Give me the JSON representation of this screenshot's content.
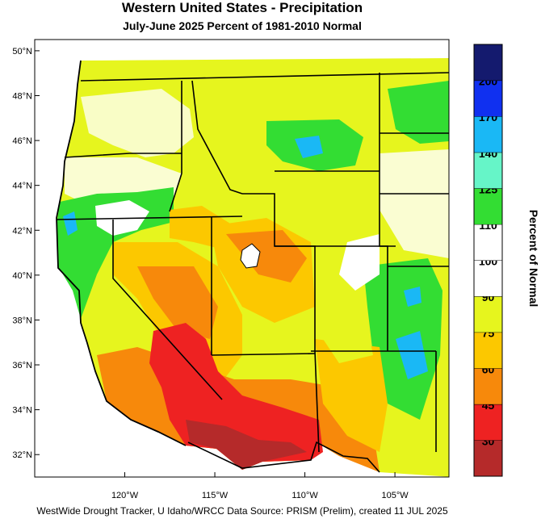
{
  "title": "Western United States - Precipitation",
  "subtitle": "July-June 2025  Percent of 1981-2010 Normal",
  "credit": "WestWide Drought Tracker, U Idaho/WRCC Data Source: PRISM (Prelim), created 11 JUL 2025",
  "map": {
    "lon_range": [
      -125,
      -102
    ],
    "lat_range": [
      31,
      50.5
    ],
    "lat_ticks": [
      {
        "value": 50,
        "label": "50°N"
      },
      {
        "value": 48,
        "label": "48°N"
      },
      {
        "value": 46,
        "label": "46°N"
      },
      {
        "value": 44,
        "label": "44°N"
      },
      {
        "value": 42,
        "label": "42°N"
      },
      {
        "value": 40,
        "label": "40°N"
      },
      {
        "value": 38,
        "label": "38°N"
      },
      {
        "value": 36,
        "label": "36°N"
      },
      {
        "value": 34,
        "label": "34°N"
      },
      {
        "value": 32,
        "label": "32°N"
      }
    ],
    "lon_ticks": [
      {
        "value": -120,
        "label": "120°W"
      },
      {
        "value": -115,
        "label": "115°W"
      },
      {
        "value": -110,
        "label": "110°W"
      },
      {
        "value": -105,
        "label": "105°W"
      }
    ],
    "water_color": "#ffffff",
    "land_outside_color": "#ffffff"
  },
  "legend": {
    "title": "Percent of Normal",
    "bins": [
      {
        "color": "#b52a2a",
        "label": "30"
      },
      {
        "color": "#ee2222",
        "label": "45"
      },
      {
        "color": "#f7890b",
        "label": "60"
      },
      {
        "color": "#fcc800",
        "label": "75"
      },
      {
        "color": "#e6f51e",
        "label": "90"
      },
      {
        "color": "#ffffff",
        "label": "100"
      },
      {
        "color": "#ffffff",
        "label": "110"
      },
      {
        "color": "#33dd33",
        "label": "125"
      },
      {
        "color": "#66f5c8",
        "label": "140"
      },
      {
        "color": "#1ab8f5",
        "label": "170"
      },
      {
        "color": "#1030f0",
        "label": "200"
      },
      {
        "color": "#141a6e",
        "label": ""
      }
    ]
  }
}
